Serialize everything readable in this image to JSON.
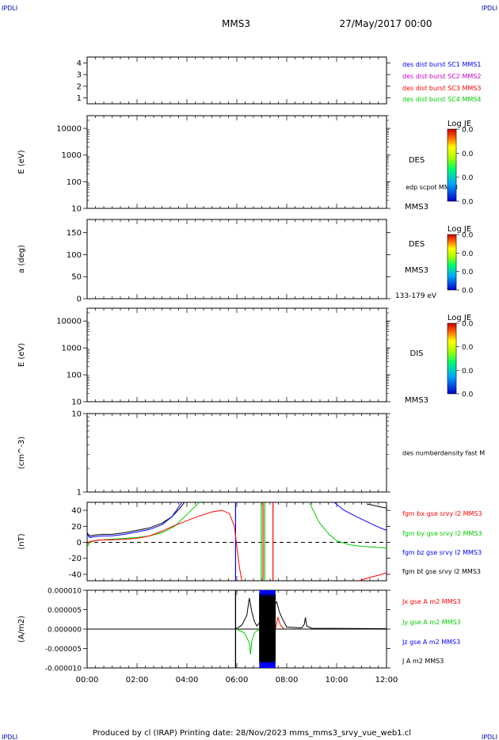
{
  "header": {
    "corner_tl": "IPDLI",
    "corner_tr": "IPDLI",
    "corner_bl": "IPDLI",
    "corner_br": "IPDLI",
    "spacecraft": "MMS3",
    "date": "27/May/2017 00:00"
  },
  "footer": {
    "text": "Produced by cl (IRAP)   Printing date: 28/Nov/2023   mms_mms3_srvy_vue_web1.cl"
  },
  "colors": {
    "mms1": "#0000ff",
    "mms2": "#cc00cc",
    "mms3": "#ff0000",
    "mms4": "#00cc00",
    "bx": "#ff0000",
    "by": "#00cc00",
    "bz": "#0000ff",
    "bt": "#000000"
  },
  "chart_data": [
    {
      "id": "panel1",
      "type": "line",
      "ylabel": "",
      "ylim": [
        0.5,
        4.5
      ],
      "yticks": [
        "1",
        "2",
        "3",
        "4"
      ],
      "legend": [
        "des dist burst SC1 MMS1",
        "des dist burst SC2 MMS2",
        "des dist burst SC3 MMS3",
        "des dist burst SC4 MMS4"
      ],
      "series": []
    },
    {
      "id": "panel2",
      "type": "heatmap",
      "ylabel": "E (eV)",
      "yscale": "log",
      "ylim": [
        10,
        30000
      ],
      "yticks": [
        "10",
        "100",
        "1000",
        "10000"
      ],
      "right_labels": [
        "DES",
        "edp scpot MMS3",
        "MMS3"
      ],
      "colorbar": {
        "title": "Log JE",
        "ticks": [
          "0.0",
          "0.0",
          "0.0",
          "0.0"
        ]
      }
    },
    {
      "id": "panel3",
      "type": "heatmap",
      "ylabel": "a (deg)",
      "ylim": [
        0,
        180
      ],
      "yticks": [
        "0",
        "50",
        "100",
        "150"
      ],
      "right_labels": [
        "DES",
        "MMS3",
        "133-179 eV"
      ],
      "colorbar": {
        "title": "Log JE",
        "ticks": [
          "0.0",
          "0.0",
          "0.0",
          "0.0"
        ]
      }
    },
    {
      "id": "panel4",
      "type": "heatmap",
      "ylabel": "E (eV)",
      "yscale": "log",
      "ylim": [
        10,
        30000
      ],
      "yticks": [
        "10",
        "100",
        "1000",
        "10000"
      ],
      "right_labels": [
        "DIS",
        "MMS3"
      ],
      "colorbar": {
        "title": "Log JE",
        "ticks": [
          "0.0",
          "0.0",
          "0.0",
          "0.0"
        ]
      }
    },
    {
      "id": "panel5",
      "type": "line",
      "ylabel": "(cm^-3)",
      "yscale": "log",
      "ylim": [
        1,
        10
      ],
      "yticks": [
        "1",
        "10"
      ],
      "legend": [
        "des numberdensity fast M"
      ],
      "series": []
    },
    {
      "id": "panel6",
      "type": "line",
      "ylabel": "(nT)",
      "ylim": [
        -48,
        50
      ],
      "yticks": [
        "-40",
        "-20",
        "0",
        "20",
        "40"
      ],
      "legend": [
        "fgm bx gse srvy l2 MMS3",
        "fgm by gse srvy l2 MMS3",
        "fgm bz gse srvy l2 MMS3",
        "fgm bt gse srvy l2 MMS3"
      ],
      "series": [
        {
          "key": "bt",
          "x": [
            0.0,
            0.1,
            0.3,
            0.6,
            1.0,
            1.5,
            2.0,
            2.5,
            3.0,
            3.4,
            3.7,
            3.9
          ],
          "y": [
            12,
            8,
            9,
            10,
            10,
            12,
            15,
            18,
            24,
            32,
            42,
            50
          ]
        },
        {
          "key": "bz",
          "x": [
            0.0,
            0.1,
            0.3,
            0.6,
            1.0,
            1.5,
            2.0,
            2.5,
            3.0,
            3.4,
            3.8
          ],
          "y": [
            10,
            6,
            7,
            8,
            8,
            10,
            13,
            16,
            22,
            32,
            50
          ]
        },
        {
          "key": "by",
          "x": [
            0.0,
            0.1,
            0.3,
            0.6,
            1.0,
            1.5,
            2.0,
            2.5,
            3.0,
            3.5,
            4.0,
            4.5
          ],
          "y": [
            -6,
            0,
            2,
            3,
            4,
            5,
            6,
            8,
            12,
            20,
            35,
            50
          ]
        },
        {
          "key": "bx",
          "x": [
            0.0,
            0.1,
            0.5,
            1.0,
            1.5,
            2.0,
            2.5,
            3.0,
            3.5,
            4.0,
            4.5,
            5.0,
            5.4,
            5.7,
            5.9,
            6.1,
            6.2
          ],
          "y": [
            -2,
            1,
            3,
            3,
            4,
            5,
            8,
            14,
            21,
            27,
            33,
            38,
            40,
            36,
            20,
            -30,
            -48
          ]
        },
        {
          "key": "bz",
          "x": [
            9.9,
            10.3,
            10.8,
            11.2,
            11.6,
            12.0
          ],
          "y": [
            50,
            40,
            32,
            26,
            20,
            15
          ]
        },
        {
          "key": "bt",
          "x": [
            11.2,
            11.5,
            11.8,
            12.0
          ],
          "y": [
            48,
            46,
            44,
            43
          ]
        },
        {
          "key": "by",
          "x": [
            8.9,
            9.3,
            9.7,
            10.0,
            10.5,
            11.0,
            11.5,
            12.0
          ],
          "y": [
            50,
            25,
            10,
            2,
            -3,
            -5,
            -6,
            -7
          ]
        },
        {
          "key": "bx",
          "x": [
            10.9,
            11.3,
            11.7,
            12.0
          ],
          "y": [
            -48,
            -44,
            -41,
            -38
          ]
        }
      ],
      "vlines": [
        {
          "key": "bz",
          "x": 5.95
        },
        {
          "key": "by",
          "x": 6.98
        },
        {
          "key": "bx",
          "x": 7.05
        },
        {
          "key": "by",
          "x": 7.12
        },
        {
          "key": "bx",
          "x": 7.45
        }
      ]
    },
    {
      "id": "panel7",
      "type": "line",
      "ylabel": "(A/m2)",
      "ylim": [
        -1e-05,
        1e-05
      ],
      "yticks": [
        "-0.000010",
        "-0.000005",
        "0.000000",
        "0.000005",
        "0.000010"
      ],
      "xticks": [
        "00:00",
        "02:00",
        "04:00",
        "06:00",
        "08:00",
        "10:00",
        "12:00"
      ],
      "xlim": [
        0,
        12
      ],
      "legend": [
        "Jx gse A m2 MMS3",
        "Jy gse A m2 MMS3",
        "Jz gse A m2 MMS3",
        "J A m2 MMS3"
      ],
      "band": {
        "key": "bz",
        "x": [
          6.9,
          7.55
        ]
      },
      "series": [
        {
          "key": "bt",
          "x": [
            0,
            5.9,
            6.0,
            6.2,
            6.4,
            6.5,
            6.6,
            6.7,
            6.8,
            7.6,
            7.7,
            7.8,
            8.0,
            8.6,
            8.7,
            8.75,
            8.8,
            9.0,
            12.0
          ],
          "y": [
            0,
            0,
            2e-07,
            1e-06,
            3.5e-06,
            8e-06,
            4.5e-06,
            2e-06,
            8e-07,
            7e-06,
            4.5e-06,
            3e-06,
            5e-07,
            3e-07,
            1.2e-06,
            3e-06,
            8e-07,
            2e-07,
            1e-07
          ]
        },
        {
          "key": "by",
          "x": [
            6.0,
            6.3,
            6.5,
            6.55,
            6.6,
            6.7,
            6.9
          ],
          "y": [
            0,
            -1e-06,
            -3.5e-06,
            -6.5e-06,
            -3e-06,
            -1e-06,
            0
          ]
        },
        {
          "key": "bx",
          "x": [
            7.55,
            7.6,
            7.65,
            7.75,
            7.9
          ],
          "y": [
            0,
            1.5e-06,
            3e-06,
            1e-06,
            0
          ]
        }
      ],
      "vlines": [
        {
          "key": "bz",
          "x": 5.95
        },
        {
          "key": "bt",
          "x": 5.95
        }
      ]
    }
  ]
}
